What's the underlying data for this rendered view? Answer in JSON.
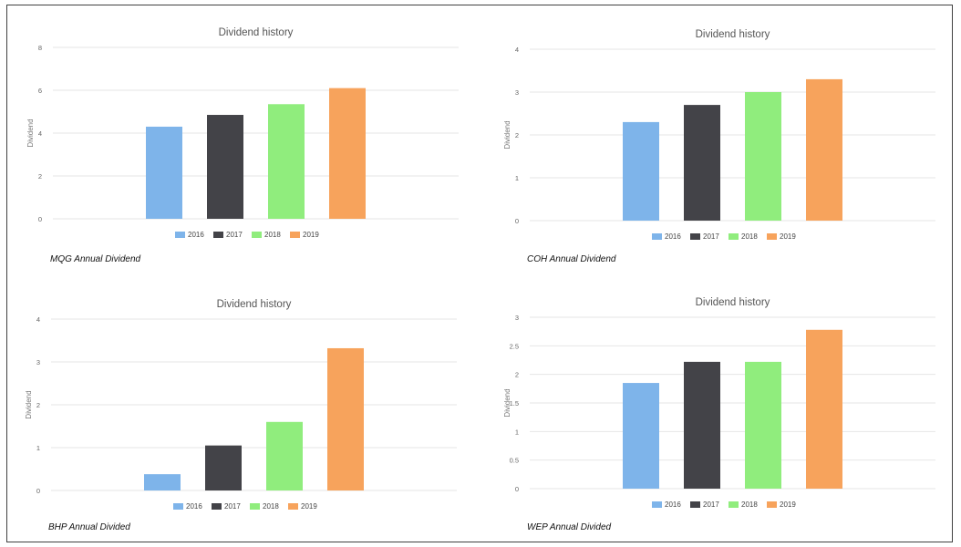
{
  "chart_data": [
    {
      "type": "bar",
      "title": "Dividend history",
      "ylabel": "Dividend",
      "xlabel": "",
      "caption": "MQG Annual Dividend",
      "ylim": [
        0,
        8
      ],
      "yticks": [
        0,
        2,
        4,
        6,
        8
      ],
      "categories": [
        "2016",
        "2017",
        "2018",
        "2019"
      ],
      "values": [
        4.3,
        4.85,
        5.35,
        6.1
      ],
      "legend": "bottom",
      "grid": true
    },
    {
      "type": "bar",
      "title": "Dividend history",
      "ylabel": "Dividend",
      "xlabel": "",
      "caption": "COH Annual Dividend",
      "ylim": [
        0,
        4
      ],
      "yticks": [
        0,
        1,
        2,
        3,
        4
      ],
      "categories": [
        "2016",
        "2017",
        "2018",
        "2019"
      ],
      "values": [
        2.3,
        2.7,
        3.0,
        3.3
      ],
      "legend": "bottom",
      "grid": true
    },
    {
      "type": "bar",
      "title": "Dividend history",
      "ylabel": "Dividend",
      "xlabel": "",
      "caption": "BHP Annual Divided",
      "ylim": [
        0,
        4
      ],
      "yticks": [
        0,
        1,
        2,
        3,
        4
      ],
      "categories": [
        "2016",
        "2017",
        "2018",
        "2019"
      ],
      "values": [
        0.38,
        1.05,
        1.6,
        3.32
      ],
      "legend": "bottom",
      "grid": true
    },
    {
      "type": "bar",
      "title": "Dividend history",
      "ylabel": "Dividend",
      "xlabel": "",
      "caption": "WEP Annual Divided",
      "ylim": [
        0,
        3
      ],
      "yticks": [
        0,
        0.5,
        1,
        1.5,
        2,
        2.5,
        3
      ],
      "categories": [
        "2016",
        "2017",
        "2018",
        "2019"
      ],
      "values": [
        1.85,
        2.22,
        2.22,
        2.78
      ],
      "legend": "bottom",
      "grid": true
    }
  ],
  "colors": {
    "2016": "#7eb4ea",
    "2017": "#434348",
    "2018": "#90ed7d",
    "2019": "#f7a35c",
    "grid": "#e6e6e6",
    "frame": "#404040"
  }
}
